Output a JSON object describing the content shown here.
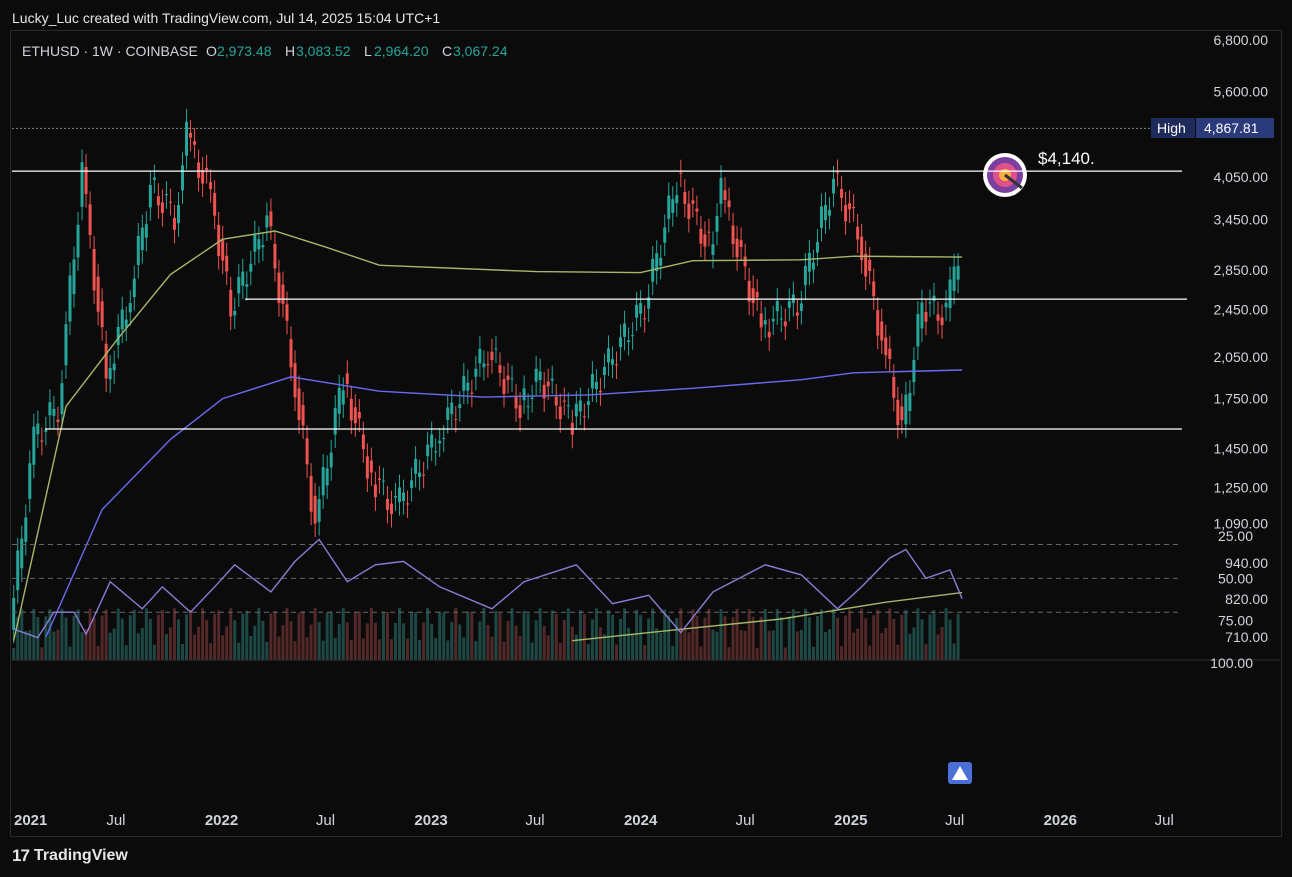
{
  "header": {
    "credit": "Lucky_Luc created with TradingView.com, Jul 14, 2025 15:04 UTC+1"
  },
  "legend": {
    "symbol": "ETHUSD · 1W · COINBASE",
    "o_label": "O",
    "o_value": "2,973.48",
    "h_label": "H",
    "h_value": "3,083.52",
    "l_label": "L",
    "l_value": "2,964.20",
    "c_label": "C",
    "c_value": "3,067.24"
  },
  "high_marker": {
    "label": "High",
    "value": "4,867.81"
  },
  "target_annotation": {
    "text": "$4,140.",
    "icon": "target-icon"
  },
  "footer": {
    "brand": "TradingView"
  },
  "colors": {
    "up": "#26a69a",
    "down": "#ef5350",
    "ma_fast": "#a4b86a",
    "ma_slow": "#6b6bf0",
    "rsi": "#8d7bd6",
    "rsi_band": "#1b1830",
    "hline": "#ffffff"
  },
  "chart_data": [
    {
      "type": "candlestick",
      "symbol": "ETHUSD",
      "interval": "1W",
      "exchange": "COINBASE",
      "y_scale": "log",
      "y_ticks": [
        "6,800.00",
        "5,600.00",
        "4,050.00",
        "3,450.00",
        "2,850.00",
        "2,450.00",
        "2,050.00",
        "1,750.00",
        "1,450.00",
        "1,250.00",
        "1,090.00",
        "940.00",
        "820.00",
        "710.00"
      ],
      "x_ticks": [
        "2021",
        "Jul",
        "2022",
        "Jul",
        "2023",
        "Jul",
        "2024",
        "Jul",
        "2025",
        "Jul",
        "2026",
        "Jul"
      ],
      "horizontal_lines": [
        4140,
        2550,
        1560
      ],
      "high_line": 4867.81,
      "series_close": [
        {
          "x": "2021-01-04",
          "y": 730
        },
        {
          "x": "2021-02-15",
          "y": 1500
        },
        {
          "x": "2021-03-29",
          "y": 1700
        },
        {
          "x": "2021-05-10",
          "y": 4100
        },
        {
          "x": "2021-06-21",
          "y": 1900
        },
        {
          "x": "2021-08-02",
          "y": 2600
        },
        {
          "x": "2021-09-06",
          "y": 3900
        },
        {
          "x": "2021-10-18",
          "y": 3500
        },
        {
          "x": "2021-11-08",
          "y": 4700
        },
        {
          "x": "2021-12-20",
          "y": 3800
        },
        {
          "x": "2022-01-24",
          "y": 2450
        },
        {
          "x": "2022-03-28",
          "y": 3450
        },
        {
          "x": "2022-05-09",
          "y": 2050
        },
        {
          "x": "2022-06-20",
          "y": 1090
        },
        {
          "x": "2022-08-08",
          "y": 1900
        },
        {
          "x": "2022-09-26",
          "y": 1300
        },
        {
          "x": "2022-11-07",
          "y": 1150
        },
        {
          "x": "2023-01-16",
          "y": 1500
        },
        {
          "x": "2023-04-17",
          "y": 2100
        },
        {
          "x": "2023-06-12",
          "y": 1700
        },
        {
          "x": "2023-07-17",
          "y": 1900
        },
        {
          "x": "2023-09-11",
          "y": 1600
        },
        {
          "x": "2023-11-13",
          "y": 2000
        },
        {
          "x": "2024-01-15",
          "y": 2500
        },
        {
          "x": "2024-03-11",
          "y": 4000
        },
        {
          "x": "2024-05-06",
          "y": 3100
        },
        {
          "x": "2024-05-27",
          "y": 3800
        },
        {
          "x": "2024-08-05",
          "y": 2300
        },
        {
          "x": "2024-10-07",
          "y": 2500
        },
        {
          "x": "2024-12-09",
          "y": 4000
        },
        {
          "x": "2025-01-20",
          "y": 3300
        },
        {
          "x": "2025-03-03",
          "y": 2200
        },
        {
          "x": "2025-04-07",
          "y": 1560
        },
        {
          "x": "2025-05-12",
          "y": 2500
        },
        {
          "x": "2025-06-23",
          "y": 2400
        },
        {
          "x": "2025-07-14",
          "y": 3067.24
        }
      ],
      "ma_fast": [
        {
          "x": "2021-01-04",
          "y": 700
        },
        {
          "x": "2021-04-05",
          "y": 1700
        },
        {
          "x": "2021-07-05",
          "y": 2200
        },
        {
          "x": "2021-10-04",
          "y": 2800
        },
        {
          "x": "2022-01-03",
          "y": 3200
        },
        {
          "x": "2022-04-04",
          "y": 3300
        },
        {
          "x": "2022-07-04",
          "y": 3100
        },
        {
          "x": "2022-10-03",
          "y": 2900
        },
        {
          "x": "2023-07-03",
          "y": 2830
        },
        {
          "x": "2024-01-01",
          "y": 2820
        },
        {
          "x": "2024-04-01",
          "y": 2950
        },
        {
          "x": "2024-10-07",
          "y": 2960
        },
        {
          "x": "2025-01-06",
          "y": 3000
        },
        {
          "x": "2025-07-14",
          "y": 2990
        }
      ],
      "ma_slow": [
        {
          "x": "2021-03-01",
          "y": 710
        },
        {
          "x": "2021-06-07",
          "y": 1150
        },
        {
          "x": "2021-10-04",
          "y": 1500
        },
        {
          "x": "2022-01-03",
          "y": 1750
        },
        {
          "x": "2022-05-02",
          "y": 1900
        },
        {
          "x": "2022-10-03",
          "y": 1800
        },
        {
          "x": "2023-04-03",
          "y": 1760
        },
        {
          "x": "2023-10-02",
          "y": 1775
        },
        {
          "x": "2024-04-01",
          "y": 1820
        },
        {
          "x": "2024-10-07",
          "y": 1880
        },
        {
          "x": "2025-01-06",
          "y": 1930
        },
        {
          "x": "2025-07-14",
          "y": 1950
        }
      ],
      "ma_long": [
        {
          "x": "2023-09-04",
          "y": 700
        },
        {
          "x": "2024-03-04",
          "y": 730
        },
        {
          "x": "2024-09-02",
          "y": 760
        },
        {
          "x": "2025-03-03",
          "y": 810
        },
        {
          "x": "2025-07-14",
          "y": 840
        }
      ]
    },
    {
      "type": "line",
      "indicator": "RSI",
      "ylim": [
        25,
        100
      ],
      "y_ticks": [
        "100.00",
        "75.00",
        "50.00",
        "25.00"
      ],
      "band": [
        30,
        70
      ],
      "points": [
        {
          "x": "2021-01-04",
          "y": 80
        },
        {
          "x": "2021-02-15",
          "y": 85
        },
        {
          "x": "2021-03-15",
          "y": 70
        },
        {
          "x": "2021-04-19",
          "y": 70
        },
        {
          "x": "2021-05-10",
          "y": 83
        },
        {
          "x": "2021-06-21",
          "y": 52
        },
        {
          "x": "2021-08-16",
          "y": 68
        },
        {
          "x": "2021-09-20",
          "y": 55
        },
        {
          "x": "2021-11-08",
          "y": 70
        },
        {
          "x": "2021-12-20",
          "y": 55
        },
        {
          "x": "2022-01-24",
          "y": 42
        },
        {
          "x": "2022-03-28",
          "y": 58
        },
        {
          "x": "2022-05-09",
          "y": 40
        },
        {
          "x": "2022-06-20",
          "y": 27
        },
        {
          "x": "2022-08-08",
          "y": 52
        },
        {
          "x": "2022-09-26",
          "y": 42
        },
        {
          "x": "2022-11-14",
          "y": 40
        },
        {
          "x": "2023-01-16",
          "y": 55
        },
        {
          "x": "2023-04-17",
          "y": 68
        },
        {
          "x": "2023-06-12",
          "y": 52
        },
        {
          "x": "2023-09-11",
          "y": 42
        },
        {
          "x": "2023-11-13",
          "y": 65
        },
        {
          "x": "2024-01-15",
          "y": 60
        },
        {
          "x": "2024-03-11",
          "y": 82
        },
        {
          "x": "2024-05-06",
          "y": 58
        },
        {
          "x": "2024-08-05",
          "y": 42
        },
        {
          "x": "2024-10-07",
          "y": 48
        },
        {
          "x": "2024-12-09",
          "y": 68
        },
        {
          "x": "2025-01-20",
          "y": 55
        },
        {
          "x": "2025-03-10",
          "y": 38
        },
        {
          "x": "2025-04-07",
          "y": 33
        },
        {
          "x": "2025-05-12",
          "y": 50
        },
        {
          "x": "2025-06-23",
          "y": 45
        },
        {
          "x": "2025-07-14",
          "y": 62
        }
      ],
      "signal_marker": "up-arrow"
    }
  ]
}
